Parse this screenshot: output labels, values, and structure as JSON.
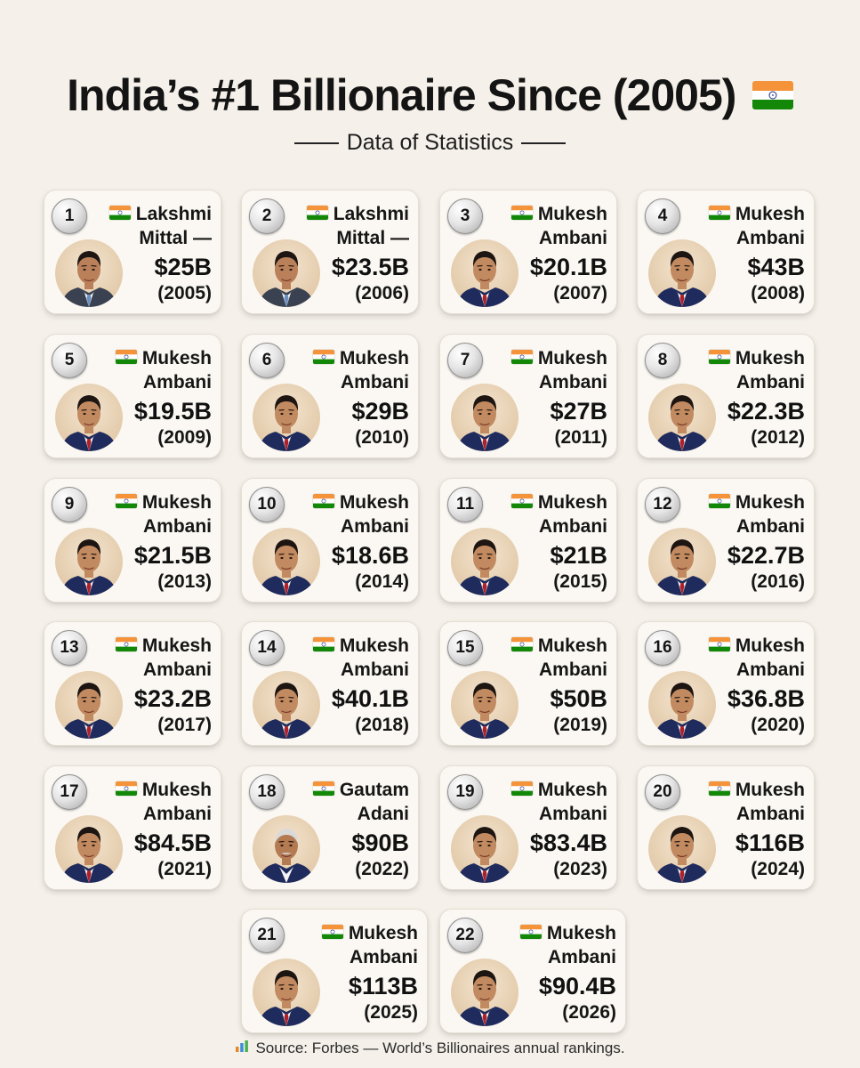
{
  "header": {
    "title": "India’s #1 Billionaire Since (2005)",
    "title_flag_icon": "india-flag-icon",
    "subtitle": "Data of Statistics"
  },
  "colors": {
    "background": "#f5f1ea",
    "saffron": "#f4933a",
    "green": "#138808",
    "chakra": "#1c2c8c"
  },
  "entries": [
    {
      "rank": "1",
      "name1": "Lakshmi",
      "name2": "Mittal —",
      "worth": "$25B",
      "year": "(2005)",
      "person": "lakshmi-mittal"
    },
    {
      "rank": "2",
      "name1": "Lakshmi",
      "name2": "Mittal —",
      "worth": "$23.5B",
      "year": "(2006)",
      "person": "lakshmi-mittal"
    },
    {
      "rank": "3",
      "name1": "Mukesh",
      "name2": "Ambani",
      "worth": "$20.1B",
      "year": "(2007)",
      "person": "mukesh-ambani"
    },
    {
      "rank": "4",
      "name1": "Mukesh",
      "name2": "Ambani",
      "worth": "$43B",
      "year": "(2008)",
      "person": "mukesh-ambani"
    },
    {
      "rank": "5",
      "name1": "Mukesh",
      "name2": "Ambani",
      "worth": "$19.5B",
      "year": "(2009)",
      "person": "mukesh-ambani"
    },
    {
      "rank": "6",
      "name1": "Mukesh",
      "name2": "Ambani",
      "worth": "$29B",
      "year": "(2010)",
      "person": "mukesh-ambani"
    },
    {
      "rank": "7",
      "name1": "Mukesh",
      "name2": "Ambani",
      "worth": "$27B",
      "year": "(2011)",
      "person": "mukesh-ambani"
    },
    {
      "rank": "8",
      "name1": "Mukesh",
      "name2": "Ambani",
      "worth": "$22.3B",
      "year": "(2012)",
      "person": "mukesh-ambani"
    },
    {
      "rank": "9",
      "name1": "Mukesh",
      "name2": "Ambani",
      "worth": "$21.5B",
      "year": "(2013)",
      "person": "mukesh-ambani"
    },
    {
      "rank": "10",
      "name1": "Mukesh",
      "name2": "Ambani",
      "worth": "$18.6B",
      "year": "(2014)",
      "person": "mukesh-ambani"
    },
    {
      "rank": "11",
      "name1": "Mukesh",
      "name2": "Ambani",
      "worth": "$21B",
      "year": "(2015)",
      "person": "mukesh-ambani"
    },
    {
      "rank": "12",
      "name1": "Mukesh",
      "name2": "Ambani",
      "worth": "$22.7B",
      "year": "(2016)",
      "person": "mukesh-ambani"
    },
    {
      "rank": "13",
      "name1": "Mukesh",
      "name2": "Ambani",
      "worth": "$23.2B",
      "year": "(2017)",
      "person": "mukesh-ambani"
    },
    {
      "rank": "14",
      "name1": "Mukesh",
      "name2": "Ambani",
      "worth": "$40.1B",
      "year": "(2018)",
      "person": "mukesh-ambani"
    },
    {
      "rank": "15",
      "name1": "Mukesh",
      "name2": "Ambani",
      "worth": "$50B",
      "year": "(2019)",
      "person": "mukesh-ambani"
    },
    {
      "rank": "16",
      "name1": "Mukesh",
      "name2": "Ambani",
      "worth": "$36.8B",
      "year": "(2020)",
      "person": "mukesh-ambani"
    },
    {
      "rank": "17",
      "name1": "Mukesh",
      "name2": "Ambani",
      "worth": "$84.5B",
      "year": "(2021)",
      "person": "mukesh-ambani"
    },
    {
      "rank": "18",
      "name1": "Gautam",
      "name2": "Adani",
      "worth": "$90B",
      "year": "(2022)",
      "person": "gautam-adani"
    },
    {
      "rank": "19",
      "name1": "Mukesh",
      "name2": "Ambani",
      "worth": "$83.4B",
      "year": "(2023)",
      "person": "mukesh-ambani"
    },
    {
      "rank": "20",
      "name1": "Mukesh",
      "name2": "Ambani",
      "worth": "$116B",
      "year": "(2024)",
      "person": "mukesh-ambani"
    },
    {
      "rank": "21",
      "name1": "Mukesh",
      "name2": "Ambani",
      "worth": "$113B",
      "year": "(2025)",
      "person": "mukesh-ambani"
    },
    {
      "rank": "22",
      "name1": "Mukesh",
      "name2": "Ambani",
      "worth": "$90.4B",
      "year": "(2026)",
      "person": "mukesh-ambani"
    }
  ],
  "footer": {
    "icon": "bar-chart-icon",
    "source": "Source: Forbes — World’s Billionaires annual rankings."
  }
}
